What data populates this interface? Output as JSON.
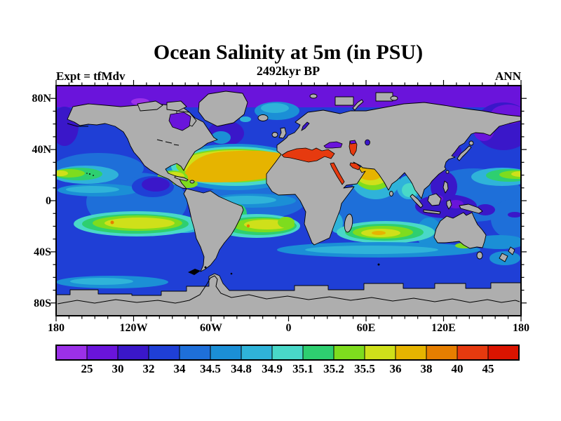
{
  "figure": {
    "background": "#ffffff",
    "title": "Ocean Salinity at 5m (in PSU)",
    "subtitle": "2492kyr BP",
    "experiment_label": "Expt = tfMdv",
    "season_label": "ANN"
  },
  "chart_data": {
    "type": "heatmap",
    "title": "Ocean Salinity at 5m (in PSU)",
    "subtitle": "2492kyr BP",
    "experiment": "tfMdv",
    "season": "ANN",
    "variable": "Ocean Salinity",
    "depth": "5m",
    "units": "PSU",
    "projection": "equirectangular world map, lon -180..180, lat 90N..90S",
    "x_axis": {
      "tick_labels": [
        "180",
        "120W",
        "60W",
        "0",
        "60E",
        "120E",
        "180"
      ],
      "tick_lons": [
        -180,
        -120,
        -60,
        0,
        60,
        120,
        180
      ],
      "minor_step_deg": 10
    },
    "y_axis": {
      "tick_labels": [
        "80N",
        "40N",
        "0",
        "40S",
        "80S"
      ],
      "tick_lats": [
        80,
        40,
        0,
        -40,
        -80
      ],
      "minor_step_deg": 10
    },
    "colorbar": {
      "boundary_labels": [
        "25",
        "30",
        "32",
        "34",
        "34.5",
        "34.8",
        "34.9",
        "35.1",
        "35.2",
        "35.5",
        "36",
        "38",
        "40",
        "45"
      ],
      "colors": [
        "#9B30E8",
        "#6A14DB",
        "#3A17C9",
        "#1F3FD6",
        "#1E6FD9",
        "#1B8FD6",
        "#2FB3D9",
        "#49D8C8",
        "#2ECF70",
        "#7EDC1E",
        "#CFE01A",
        "#E6B400",
        "#E67E00",
        "#E63A0F",
        "#DB1400"
      ]
    },
    "land_color": "#AEAEAE",
    "coastline_color": "#000000",
    "ocean_regions": [
      {
        "name": "arctic-ocean",
        "salinity_psu": "25-30"
      },
      {
        "name": "hudson-bay",
        "salinity_psu": "25-30"
      },
      {
        "name": "north-atlantic-subtropical-gyre",
        "salinity_psu": "36-38"
      },
      {
        "name": "gulf-of-mexico-caribbean",
        "salinity_psu": "35.5-36"
      },
      {
        "name": "mediterranean-sea",
        "salinity_psu": "40-45"
      },
      {
        "name": "black-sea",
        "salinity_psu": "25-30"
      },
      {
        "name": "caspian-sea",
        "salinity_psu": "40-45"
      },
      {
        "name": "red-sea",
        "salinity_psu": "40-45"
      },
      {
        "name": "persian-gulf",
        "salinity_psu": "40-45"
      },
      {
        "name": "arabian-sea",
        "salinity_psu": "36-38"
      },
      {
        "name": "bay-of-bengal",
        "salinity_psu": "34.8-35.1"
      },
      {
        "name": "north-pacific-subtropical-streak",
        "salinity_psu": "35.2-35.5"
      },
      {
        "name": "south-pacific-gyre",
        "salinity_psu": "35.5-36"
      },
      {
        "name": "south-atlantic-gyre",
        "salinity_psu": "35.5-36"
      },
      {
        "name": "south-indian-gyre",
        "salinity_psu": "35.5-36"
      },
      {
        "name": "indonesian-seas",
        "salinity_psu": "25-32"
      },
      {
        "name": "open-ocean-background",
        "salinity_psu": "32-34.5"
      },
      {
        "name": "southern-ocean",
        "salinity_psu": "32-34.8"
      }
    ]
  }
}
